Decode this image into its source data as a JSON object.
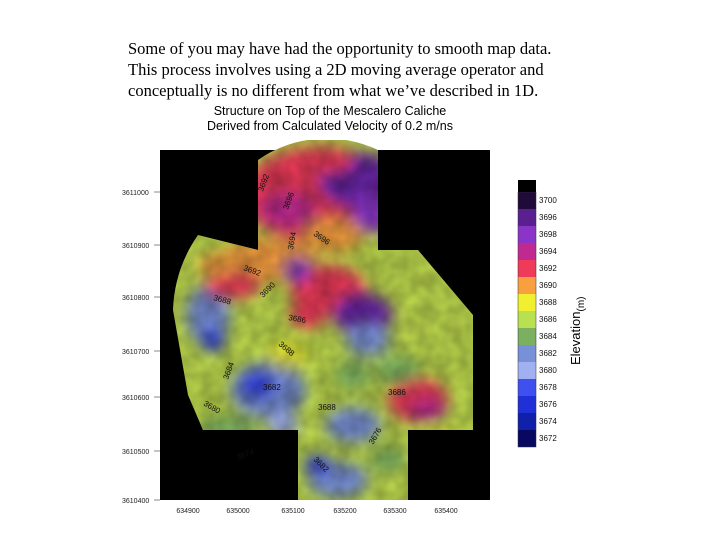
{
  "intro_text": {
    "line1": "Some of you may have had the opportunity to smooth map data.",
    "line2": "This process involves using a 2D moving average operator and",
    "line3": "conceptually is no different from what we’ve described in 1D."
  },
  "map_title": {
    "line1": "Structure on Top of the Mescalero Caliche",
    "line2": "Derived from Calculated Velocity of 0.2 m/ns"
  },
  "y_axis_ticks": [
    "3611000",
    "3610900",
    "3610800",
    "3610700",
    "3610600",
    "3610500",
    "3610400"
  ],
  "x_axis_ticks": [
    "634900",
    "635000",
    "635100",
    "635200",
    "635300",
    "635400"
  ],
  "colorbar": {
    "label": "Elevation",
    "label_unit": "(m)",
    "levels": [
      {
        "value": "3700",
        "color": "#200a3a"
      },
      {
        "value": "3696",
        "color": "#5a2090"
      },
      {
        "value": "3698",
        "color": "#8a35c8"
      },
      {
        "value": "3694",
        "color": "#c02a90"
      },
      {
        "value": "3692",
        "color": "#f03a5a"
      },
      {
        "value": "3690",
        "color": "#f8a040"
      },
      {
        "value": "3688",
        "color": "#f0f030"
      },
      {
        "value": "3686",
        "color": "#b8e050"
      },
      {
        "value": "3684",
        "color": "#7ab060"
      },
      {
        "value": "3682",
        "color": "#7890d8"
      },
      {
        "value": "3680",
        "color": "#a0b0f0"
      },
      {
        "value": "3678",
        "color": "#4050f0"
      },
      {
        "value": "3676",
        "color": "#2030d8"
      },
      {
        "value": "3674",
        "color": "#1020a8"
      },
      {
        "value": "3672",
        "color": "#080860"
      }
    ]
  },
  "contour_labels": [
    "3692",
    "3696",
    "3696",
    "3694",
    "3692",
    "3688",
    "3690",
    "3686",
    "3688",
    "3684",
    "3682",
    "3680",
    "3688",
    "3686",
    "3676",
    "3682",
    "3674"
  ]
}
